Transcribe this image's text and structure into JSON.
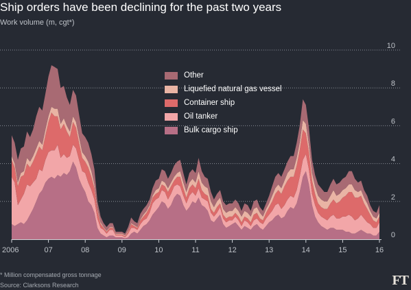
{
  "title": "Ship orders have been declining for the past two years",
  "subtitle": "Work volume (m, cgt*)",
  "footnote": "* Million compensated gross tonnage",
  "source": "Source: Clarksons Research",
  "logo": "FT",
  "colors": {
    "background": "#262a33",
    "gridline": "#8a8f98",
    "axis_text": "#bfc3c9"
  },
  "chart_data": {
    "type": "area",
    "stacked": true,
    "title": "Ship orders have been declining for the past two years",
    "ylabel": "Work volume (m, cgt*)",
    "ylim": [
      0,
      10
    ],
    "y_ticks": [
      0,
      2,
      4,
      6,
      8,
      10
    ],
    "x_ticks": [
      {
        "label": "2006",
        "x": 2006.0
      },
      {
        "label": "07",
        "x": 2007.0
      },
      {
        "label": "08",
        "x": 2008.0
      },
      {
        "label": "09",
        "x": 2009.0
      },
      {
        "label": "10",
        "x": 2010.0
      },
      {
        "label": "11",
        "x": 2011.0
      },
      {
        "label": "12",
        "x": 2012.0
      },
      {
        "label": "13",
        "x": 2013.0
      },
      {
        "label": "14",
        "x": 2014.0
      },
      {
        "label": "15",
        "x": 2015.0
      },
      {
        "label": "16",
        "x": 2016.0
      }
    ],
    "xlim": [
      2006.0,
      2016.0
    ],
    "grid": true,
    "legend_position": "top-center",
    "x": [
      2006.0,
      2006.083,
      2006.167,
      2006.25,
      2006.333,
      2006.417,
      2006.5,
      2006.583,
      2006.667,
      2006.75,
      2006.833,
      2006.917,
      2007.0,
      2007.083,
      2007.167,
      2007.25,
      2007.333,
      2007.417,
      2007.5,
      2007.583,
      2007.667,
      2007.75,
      2007.833,
      2007.917,
      2008.0,
      2008.083,
      2008.167,
      2008.25,
      2008.333,
      2008.417,
      2008.5,
      2008.583,
      2008.667,
      2008.75,
      2008.833,
      2008.917,
      2009.0,
      2009.083,
      2009.167,
      2009.25,
      2009.333,
      2009.417,
      2009.5,
      2009.583,
      2009.667,
      2009.75,
      2009.833,
      2009.917,
      2010.0,
      2010.083,
      2010.167,
      2010.25,
      2010.333,
      2010.417,
      2010.5,
      2010.583,
      2010.667,
      2010.75,
      2010.833,
      2010.917,
      2011.0,
      2011.083,
      2011.167,
      2011.25,
      2011.333,
      2011.417,
      2011.5,
      2011.583,
      2011.667,
      2011.75,
      2011.833,
      2011.917,
      2012.0,
      2012.083,
      2012.167,
      2012.25,
      2012.333,
      2012.417,
      2012.5,
      2012.583,
      2012.667,
      2012.75,
      2012.833,
      2012.917,
      2013.0,
      2013.083,
      2013.167,
      2013.25,
      2013.333,
      2013.417,
      2013.5,
      2013.583,
      2013.667,
      2013.75,
      2013.833,
      2013.917,
      2014.0,
      2014.083,
      2014.167,
      2014.25,
      2014.333,
      2014.417,
      2014.5,
      2014.583,
      2014.667,
      2014.75,
      2014.833,
      2014.917,
      2015.0,
      2015.083,
      2015.167,
      2015.25,
      2015.333,
      2015.417,
      2015.5,
      2015.583,
      2015.667,
      2015.75,
      2015.833,
      2015.917,
      2016.0
    ],
    "series": [
      {
        "name": "Bulk cargo ship",
        "color": "#b76f86",
        "values": [
          0.8,
          0.7,
          0.8,
          0.9,
          0.8,
          1.0,
          1.3,
          1.6,
          2.0,
          2.4,
          2.6,
          3.0,
          3.2,
          3.3,
          3.2,
          3.4,
          3.3,
          3.5,
          3.4,
          3.6,
          4.1,
          3.8,
          3.2,
          2.8,
          2.5,
          2.0,
          1.8,
          1.4,
          0.6,
          0.3,
          0.2,
          0.1,
          0.2,
          0.2,
          0.1,
          0.1,
          0.1,
          0.05,
          0.1,
          0.3,
          0.4,
          0.3,
          0.5,
          0.7,
          0.8,
          1.0,
          1.3,
          1.5,
          1.7,
          2.0,
          1.9,
          1.6,
          1.8,
          2.2,
          2.4,
          2.3,
          1.8,
          1.5,
          1.7,
          2.0,
          1.9,
          2.2,
          1.8,
          1.7,
          1.5,
          1.0,
          0.9,
          1.1,
          1.3,
          0.8,
          0.6,
          0.7,
          0.8,
          0.9,
          0.7,
          0.5,
          0.7,
          0.6,
          0.5,
          0.7,
          0.8,
          0.6,
          0.5,
          0.7,
          0.9,
          1.0,
          1.2,
          1.3,
          1.1,
          1.2,
          1.5,
          1.7,
          1.6,
          1.9,
          2.5,
          3.3,
          3.6,
          2.9,
          1.8,
          1.2,
          0.9,
          0.7,
          0.6,
          0.5,
          0.6,
          0.6,
          0.5,
          0.5,
          0.5,
          0.4,
          0.4,
          0.3,
          0.3,
          0.4,
          0.5,
          0.4,
          0.3,
          0.3,
          0.2,
          0.2,
          0.4
        ]
      },
      {
        "name": "Oil tanker",
        "color": "#f2a6a8",
        "values": [
          2.5,
          2.3,
          1.0,
          1.2,
          1.6,
          1.9,
          1.5,
          1.4,
          1.2,
          1.3,
          1.0,
          1.2,
          1.4,
          1.4,
          1.5,
          1.6,
          1.0,
          1.0,
          0.9,
          0.8,
          0.9,
          1.0,
          1.0,
          0.8,
          1.0,
          1.0,
          0.8,
          0.7,
          0.5,
          0.3,
          0.3,
          0.2,
          0.3,
          0.3,
          0.1,
          0.1,
          0.1,
          0.05,
          0.2,
          0.3,
          0.2,
          0.2,
          0.3,
          0.3,
          0.3,
          0.4,
          0.6,
          0.6,
          0.5,
          0.6,
          0.6,
          0.5,
          0.6,
          0.6,
          0.5,
          0.5,
          0.5,
          0.4,
          0.6,
          0.5,
          0.4,
          0.5,
          0.4,
          0.4,
          0.5,
          0.4,
          0.3,
          0.3,
          0.4,
          0.3,
          0.3,
          0.3,
          0.2,
          0.3,
          0.3,
          0.2,
          0.3,
          0.3,
          0.2,
          0.3,
          0.3,
          0.3,
          0.3,
          0.4,
          0.4,
          0.5,
          0.6,
          0.6,
          0.5,
          0.6,
          0.6,
          0.6,
          0.6,
          0.7,
          0.8,
          0.9,
          0.9,
          0.8,
          0.6,
          0.6,
          0.5,
          0.5,
          0.5,
          0.5,
          0.6,
          0.7,
          0.6,
          0.6,
          0.7,
          0.8,
          0.9,
          0.9,
          0.7,
          0.7,
          0.8,
          0.7,
          0.6,
          0.5,
          0.4,
          0.4,
          0.5
        ]
      },
      {
        "name": "Container ship",
        "color": "#dd6a6a",
        "values": [
          0.9,
          0.8,
          1.0,
          1.2,
          1.0,
          1.1,
          1.0,
          1.1,
          1.3,
          1.2,
          1.1,
          1.3,
          1.6,
          2.0,
          1.8,
          1.5,
          1.5,
          1.6,
          1.4,
          1.0,
          1.2,
          1.1,
          0.9,
          0.7,
          0.6,
          0.8,
          0.7,
          0.6,
          0.4,
          0.2,
          0.1,
          0.1,
          0.1,
          0.1,
          0.05,
          0.05,
          0.05,
          0.05,
          0.1,
          0.2,
          0.1,
          0.1,
          0.2,
          0.2,
          0.3,
          0.3,
          0.3,
          0.3,
          0.3,
          0.3,
          0.3,
          0.4,
          0.4,
          0.3,
          0.4,
          0.5,
          0.4,
          0.3,
          0.4,
          0.4,
          0.4,
          0.5,
          0.4,
          0.3,
          0.3,
          0.2,
          0.2,
          0.3,
          0.2,
          0.2,
          0.2,
          0.2,
          0.2,
          0.2,
          0.2,
          0.2,
          0.2,
          0.2,
          0.2,
          0.3,
          0.3,
          0.2,
          0.2,
          0.3,
          0.4,
          0.5,
          0.6,
          0.7,
          0.8,
          1.0,
          1.0,
          1.0,
          1.1,
          1.3,
          1.4,
          1.6,
          1.1,
          0.9,
          0.7,
          0.6,
          0.5,
          0.5,
          0.5,
          0.6,
          0.7,
          0.8,
          0.8,
          0.9,
          1.0,
          1.1,
          1.2,
          1.3,
          1.2,
          1.1,
          1.0,
          0.8,
          0.7,
          0.5,
          0.4,
          0.3,
          0.3
        ]
      },
      {
        "name": "Liquefied natural gas vessel",
        "color": "#e9b4a4",
        "values": [
          0.2,
          0.2,
          0.2,
          0.2,
          0.2,
          0.3,
          0.3,
          0.3,
          0.3,
          0.3,
          0.3,
          0.3,
          0.3,
          0.3,
          0.4,
          0.4,
          0.3,
          0.3,
          0.3,
          0.3,
          0.3,
          0.3,
          0.3,
          0.3,
          0.3,
          0.3,
          0.3,
          0.2,
          0.1,
          0.1,
          0.05,
          0.05,
          0.05,
          0.05,
          0.05,
          0.05,
          0.05,
          0.05,
          0.05,
          0.05,
          0.05,
          0.05,
          0.05,
          0.1,
          0.1,
          0.1,
          0.1,
          0.2,
          0.2,
          0.2,
          0.2,
          0.2,
          0.2,
          0.2,
          0.2,
          0.3,
          0.3,
          0.3,
          0.3,
          0.3,
          0.3,
          0.4,
          0.4,
          0.4,
          0.4,
          0.4,
          0.3,
          0.3,
          0.3,
          0.3,
          0.3,
          0.3,
          0.3,
          0.3,
          0.3,
          0.3,
          0.3,
          0.3,
          0.3,
          0.3,
          0.3,
          0.3,
          0.2,
          0.2,
          0.2,
          0.3,
          0.3,
          0.3,
          0.3,
          0.3,
          0.4,
          0.4,
          0.4,
          0.4,
          0.4,
          0.5,
          0.5,
          0.4,
          0.4,
          0.4,
          0.4,
          0.4,
          0.4,
          0.4,
          0.4,
          0.5,
          0.4,
          0.4,
          0.4,
          0.4,
          0.4,
          0.4,
          0.4,
          0.3,
          0.3,
          0.3,
          0.3,
          0.2,
          0.2,
          0.2,
          0.2
        ]
      },
      {
        "name": "Other",
        "color": "#a86a73",
        "values": [
          1.1,
          1.1,
          1.2,
          1.3,
          1.3,
          1.4,
          1.3,
          1.4,
          1.7,
          1.8,
          1.8,
          1.9,
          2.1,
          2.2,
          2.2,
          2.1,
          1.9,
          1.7,
          1.5,
          1.4,
          1.4,
          1.4,
          1.2,
          1.0,
          1.0,
          1.0,
          0.9,
          0.8,
          0.4,
          0.3,
          0.2,
          0.2,
          0.2,
          0.2,
          0.1,
          0.1,
          0.1,
          0.1,
          0.2,
          0.3,
          0.2,
          0.2,
          0.3,
          0.3,
          0.3,
          0.3,
          0.4,
          0.5,
          0.5,
          0.6,
          0.6,
          0.5,
          0.5,
          0.6,
          0.6,
          0.6,
          0.5,
          0.4,
          0.5,
          0.5,
          0.5,
          0.7,
          0.6,
          0.5,
          0.5,
          0.5,
          0.4,
          0.4,
          0.4,
          0.4,
          0.4,
          0.4,
          0.4,
          0.4,
          0.4,
          0.3,
          0.4,
          0.4,
          0.3,
          0.4,
          0.4,
          0.3,
          0.3,
          0.3,
          0.4,
          0.5,
          0.6,
          0.6,
          0.6,
          0.6,
          0.6,
          0.7,
          0.7,
          0.8,
          0.9,
          1.1,
          1.0,
          0.9,
          0.7,
          0.6,
          0.6,
          0.6,
          0.5,
          0.5,
          0.6,
          0.6,
          0.6,
          0.6,
          0.6,
          0.6,
          0.7,
          0.7,
          0.6,
          0.5,
          0.5,
          0.4,
          0.4,
          0.3,
          0.3,
          0.3,
          0.4
        ]
      }
    ]
  }
}
